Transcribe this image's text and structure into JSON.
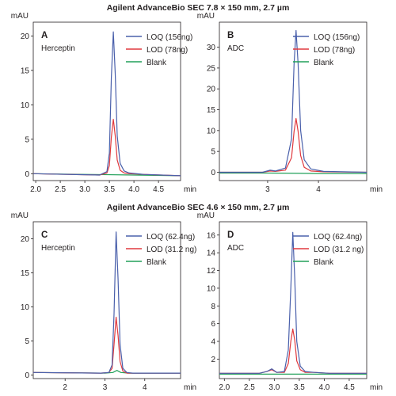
{
  "sections": [
    {
      "title": "Agilent AdvanceBio SEC 7.8 × 150 mm, 2.7 µm"
    },
    {
      "title": "Agilent AdvanceBio SEC 4.6 × 150 mm, 2.7 µm"
    }
  ],
  "series_colors": {
    "LOQ": "#4a60ab",
    "LOD": "#e0393e",
    "Blank": "#22a15a"
  },
  "chart_data": [
    {
      "type": "line",
      "panel_letter": "A",
      "sample": "Herceptin",
      "ylabel": "mAU",
      "xunit": "min",
      "xlim": [
        1.95,
        4.95
      ],
      "ylim": [
        -1,
        22
      ],
      "xticks": [
        2.0,
        2.5,
        3.0,
        3.5,
        4.0,
        4.5
      ],
      "xticklabels": [
        "2.0",
        "2.5",
        "3.0",
        "3.5",
        "4.0",
        "4.5"
      ],
      "yticks": [
        0,
        5,
        10,
        15,
        20
      ],
      "series": [
        {
          "name": "LOQ (156ng)",
          "color": "#4a60ab",
          "x": [
            1.95,
            3.3,
            3.45,
            3.5,
            3.54,
            3.58,
            3.62,
            3.66,
            3.72,
            3.8,
            3.9,
            4.2,
            4.95
          ],
          "y": [
            0.0,
            -0.2,
            0.3,
            3.0,
            14.0,
            20.6,
            14.5,
            5.5,
            1.5,
            0.4,
            0.1,
            -0.1,
            -0.3
          ]
        },
        {
          "name": "LOD (78ng)",
          "color": "#e0393e",
          "x": [
            1.95,
            3.3,
            3.45,
            3.5,
            3.54,
            3.58,
            3.62,
            3.66,
            3.72,
            3.8,
            3.9,
            4.2,
            4.95
          ],
          "y": [
            0.0,
            -0.2,
            0.1,
            1.2,
            5.3,
            7.9,
            5.5,
            2.0,
            0.5,
            0.1,
            0.0,
            -0.1,
            -0.3
          ]
        },
        {
          "name": "Blank",
          "color": "#22a15a",
          "x": [
            1.95,
            3.0,
            4.0,
            4.95
          ],
          "y": [
            0.0,
            -0.1,
            -0.2,
            -0.3
          ]
        }
      ]
    },
    {
      "type": "line",
      "panel_letter": "B",
      "sample": "ADC",
      "ylabel": "mAU",
      "xunit": "min",
      "xlim": [
        2.05,
        4.95
      ],
      "ylim": [
        -2,
        36
      ],
      "xticks": [
        3,
        4
      ],
      "xticklabels": [
        "3",
        "4"
      ],
      "yticks": [
        0,
        5,
        10,
        15,
        20,
        25,
        30
      ],
      "series": [
        {
          "name": "LOQ (156ng)",
          "color": "#4a60ab",
          "x": [
            2.05,
            2.9,
            3.05,
            3.15,
            3.35,
            3.47,
            3.52,
            3.56,
            3.6,
            3.65,
            3.72,
            3.85,
            4.1,
            4.95
          ],
          "y": [
            0.0,
            0.0,
            0.5,
            0.3,
            1.0,
            8.0,
            26.0,
            34.0,
            26.0,
            10.0,
            3.0,
            0.8,
            0.2,
            0.0
          ]
        },
        {
          "name": "LOD (78ng)",
          "color": "#e0393e",
          "x": [
            2.05,
            2.9,
            3.05,
            3.15,
            3.35,
            3.47,
            3.52,
            3.56,
            3.6,
            3.65,
            3.72,
            3.85,
            4.1,
            4.95
          ],
          "y": [
            0.0,
            0.0,
            0.3,
            0.2,
            0.5,
            3.5,
            9.8,
            12.9,
            9.8,
            4.0,
            1.2,
            0.3,
            0.1,
            0.0
          ]
        },
        {
          "name": "Blank",
          "color": "#22a15a",
          "x": [
            2.05,
            3.0,
            4.0,
            4.95
          ],
          "y": [
            -0.2,
            -0.2,
            -0.3,
            -0.3
          ]
        }
      ]
    },
    {
      "type": "line",
      "panel_letter": "C",
      "sample": "Herceptin",
      "ylabel": "mAU",
      "xunit": "min",
      "xlim": [
        1.2,
        4.9
      ],
      "ylim": [
        -0.5,
        22.5
      ],
      "xticks": [
        2,
        3,
        4
      ],
      "xticklabels": [
        "2",
        "3",
        "4"
      ],
      "yticks": [
        0,
        5,
        10,
        15,
        20
      ],
      "series": [
        {
          "name": "LOQ (62.4ng)",
          "color": "#4a60ab",
          "x": [
            1.2,
            2.9,
            3.1,
            3.18,
            3.23,
            3.28,
            3.33,
            3.38,
            3.45,
            3.55,
            3.7,
            4.0,
            4.9
          ],
          "y": [
            0.4,
            0.3,
            0.4,
            1.5,
            9.0,
            21.0,
            14.0,
            4.5,
            1.0,
            0.4,
            0.3,
            0.3,
            0.3
          ]
        },
        {
          "name": "LOD (31.2 ng)",
          "color": "#e0393e",
          "x": [
            1.2,
            2.9,
            3.1,
            3.18,
            3.23,
            3.28,
            3.33,
            3.38,
            3.45,
            3.55,
            3.7,
            4.0,
            4.9
          ],
          "y": [
            0.4,
            0.3,
            0.4,
            1.0,
            4.5,
            8.5,
            5.8,
            2.0,
            0.6,
            0.3,
            0.3,
            0.3,
            0.3
          ]
        },
        {
          "name": "Blank",
          "color": "#22a15a",
          "x": [
            1.2,
            3.0,
            3.2,
            3.3,
            3.4,
            3.6,
            4.9
          ],
          "y": [
            0.4,
            0.3,
            0.4,
            0.7,
            0.4,
            0.3,
            0.3
          ]
        }
      ]
    },
    {
      "type": "line",
      "panel_letter": "D",
      "sample": "ADC",
      "ylabel": "mAU",
      "xunit": "min",
      "xlim": [
        1.9,
        4.85
      ],
      "ylim": [
        -0.2,
        17.5
      ],
      "xticks": [
        2.0,
        2.5,
        3.0,
        3.5,
        4.0,
        4.5
      ],
      "xticklabels": [
        "2.0",
        "2.5",
        "3.0",
        "3.5",
        "4.0",
        "4.5"
      ],
      "yticks": [
        2,
        4,
        6,
        8,
        10,
        12,
        14,
        16
      ],
      "series": [
        {
          "name": "LOQ (62.4ng)",
          "color": "#4a60ab",
          "x": [
            1.9,
            2.7,
            2.85,
            2.95,
            3.05,
            3.2,
            3.28,
            3.33,
            3.37,
            3.41,
            3.45,
            3.52,
            3.62,
            3.8,
            4.1,
            4.85
          ],
          "y": [
            0.4,
            0.4,
            0.6,
            0.9,
            0.5,
            0.6,
            3.0,
            10.0,
            16.3,
            11.0,
            4.0,
            1.2,
            0.6,
            0.5,
            0.4,
            0.4
          ]
        },
        {
          "name": "LOD (31.2 ng)",
          "color": "#e0393e",
          "x": [
            1.9,
            2.7,
            2.85,
            2.95,
            3.05,
            3.2,
            3.28,
            3.33,
            3.37,
            3.41,
            3.45,
            3.52,
            3.62,
            3.8,
            4.1,
            4.85
          ],
          "y": [
            0.4,
            0.4,
            0.6,
            0.8,
            0.5,
            0.5,
            1.5,
            4.0,
            5.4,
            4.1,
            1.8,
            0.8,
            0.5,
            0.5,
            0.4,
            0.4
          ]
        },
        {
          "name": "Blank",
          "color": "#22a15a",
          "x": [
            1.9,
            3.0,
            4.0,
            4.85
          ],
          "y": [
            0.3,
            0.3,
            0.3,
            0.3
          ]
        }
      ]
    }
  ]
}
